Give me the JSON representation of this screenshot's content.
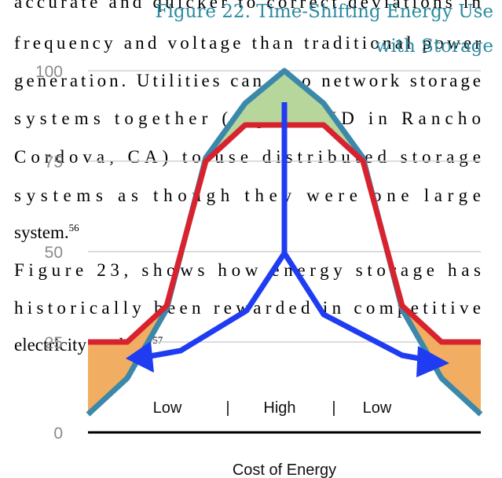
{
  "document": {
    "paragraphs": [
      {
        "lines": [
          "accurate and quicker to correct deviations in",
          "frequency and voltage than traditional power",
          "generation. Utilities can also network storage",
          "systems together (e.g. SMUD in Rancho",
          "Cordova, CA) to use distributed storage",
          "systems as though they were one large",
          "system."
        ],
        "footnote": "56"
      },
      {
        "lines": [
          "Figure 23, shows how energy storage has",
          "historically been rewarded in competitive",
          "electricity markets."
        ],
        "footnote": "57"
      }
    ]
  },
  "chart_data": {
    "type": "line",
    "title": [
      "Figure 22. Time-Shifting Energy Use",
      "with Storage"
    ],
    "x_label": "Cost of Energy",
    "annotations": [
      "Low",
      "|",
      "High",
      "|",
      "Low"
    ],
    "categories": [
      null,
      null,
      null,
      null,
      null,
      null,
      null,
      null,
      null,
      null,
      null
    ],
    "series": [
      {
        "color": "#3b88aa",
        "values": [
          5,
          15,
          34,
          76,
          91,
          100,
          91,
          76,
          34,
          15,
          5
        ]
      },
      {
        "color": "#d8232f",
        "values": [
          25,
          25,
          35,
          75,
          85,
          85,
          85,
          75,
          35,
          25,
          25
        ]
      }
    ],
    "ylim": [
      0,
      100
    ],
    "yticks": [
      0,
      25,
      50,
      75,
      100
    ],
    "grid": true
  }
}
